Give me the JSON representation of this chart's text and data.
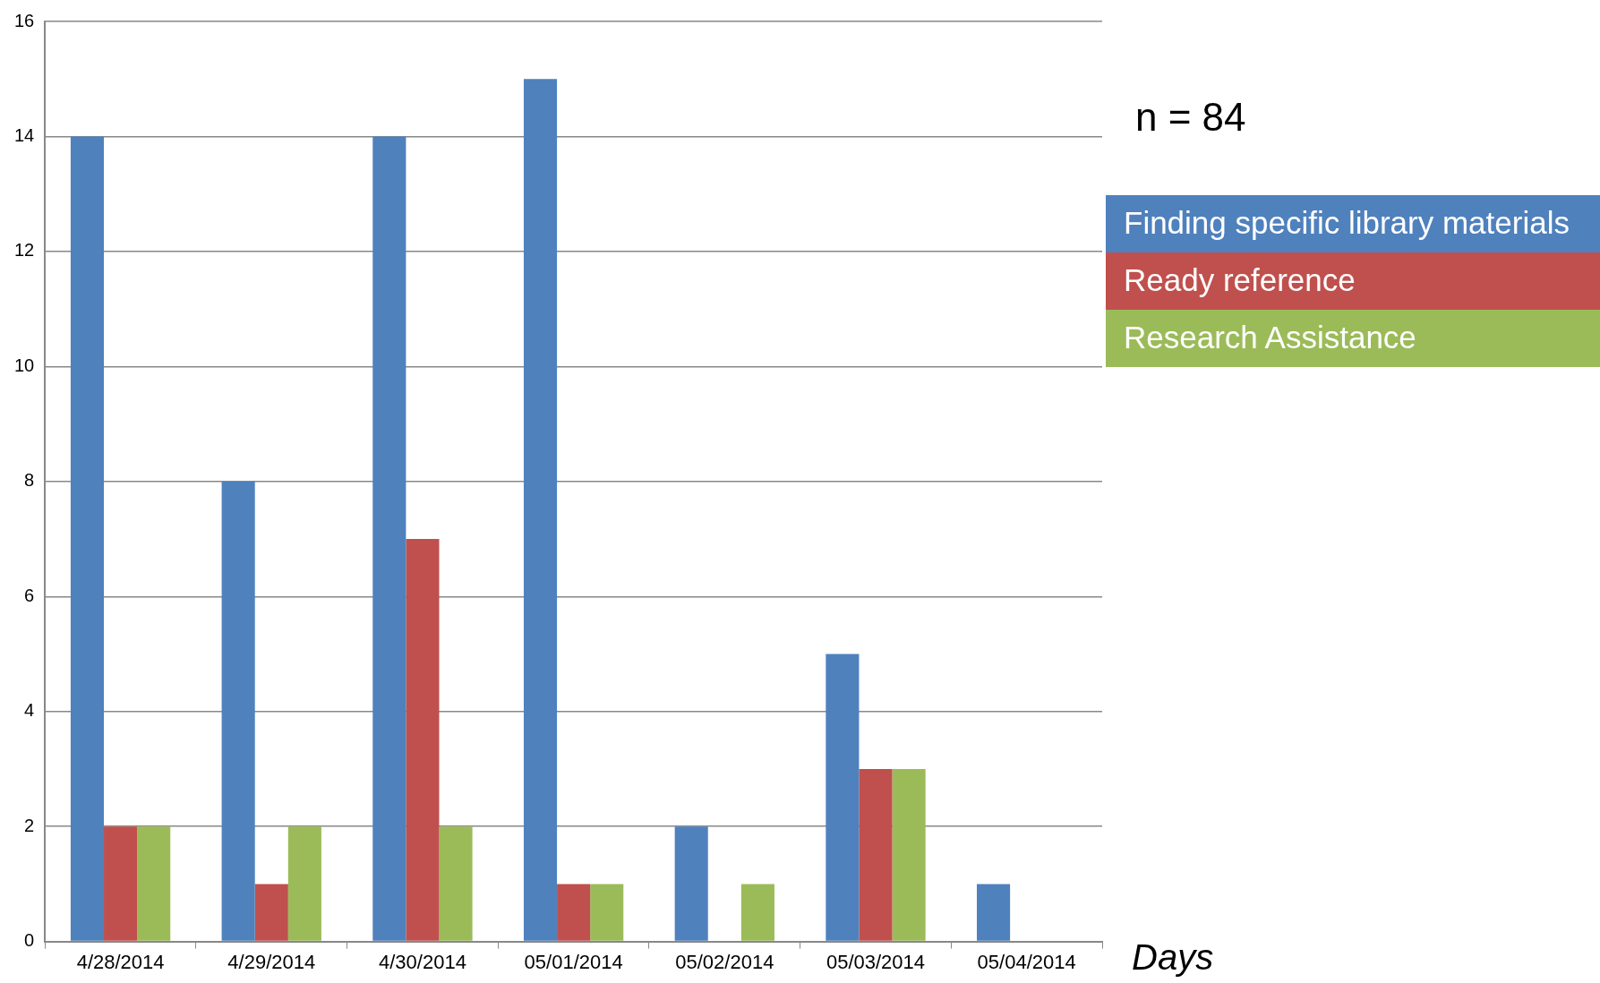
{
  "chart_data": {
    "type": "bar",
    "xlabel": "Days",
    "annotations": [
      "n = 84"
    ],
    "categories": [
      "4/28/2014",
      "4/29/2014",
      "4/30/2014",
      "05/01/2014",
      "05/02/2014",
      "05/03/2014",
      "05/04/2014"
    ],
    "series": [
      {
        "name": "Finding specific library materials",
        "color": "#4f81bd",
        "values": [
          14,
          8,
          14,
          15,
          2,
          5,
          1
        ]
      },
      {
        "name": "Ready reference",
        "color": "#c0504d",
        "values": [
          2,
          1,
          7,
          1,
          0,
          3,
          0
        ]
      },
      {
        "name": "Research Assistance",
        "color": "#9bbb59",
        "values": [
          2,
          2,
          2,
          1,
          1,
          3,
          0
        ]
      }
    ],
    "ylim": [
      0,
      16
    ],
    "yticks": [
      0,
      2,
      4,
      6,
      8,
      10,
      12,
      14,
      16
    ],
    "grid": "y",
    "legend": "right"
  }
}
